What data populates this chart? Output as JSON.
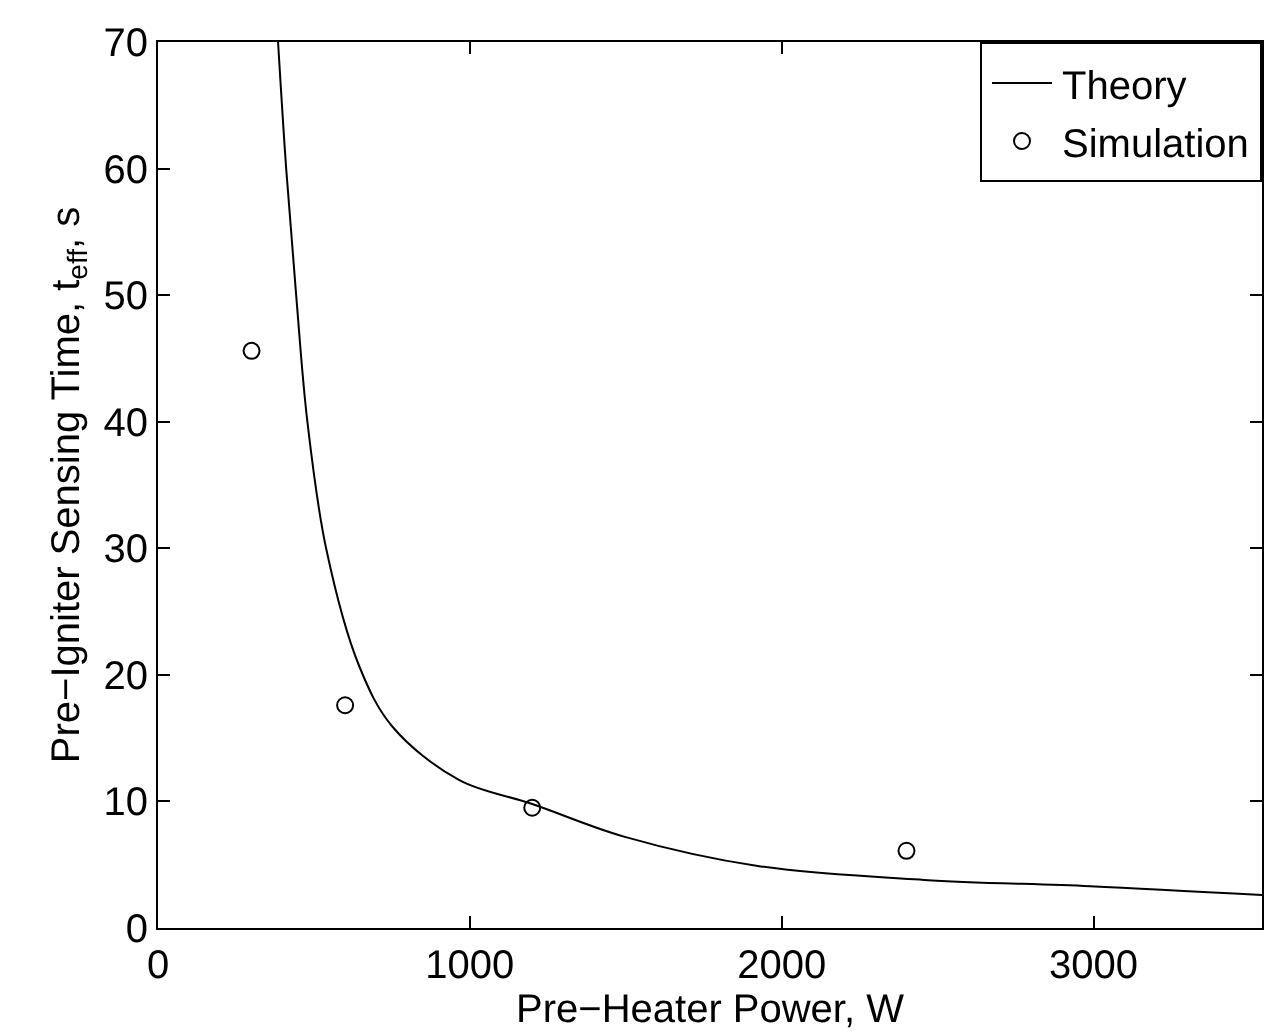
{
  "chart_data": {
    "type": "line",
    "xlabel": "Pre−Heater Power, W",
    "ylabel": "Pre−Igniter Sensing Time, t$_{eff}$, s",
    "xlim": [
      0,
      3540
    ],
    "ylim": [
      0,
      70
    ],
    "xticks": [
      0,
      1000,
      2000,
      3000
    ],
    "yticks": [
      0,
      10,
      20,
      30,
      40,
      50,
      60,
      70
    ],
    "grid": false,
    "legend": "top right",
    "series": [
      {
        "name": "Theory",
        "color": "#000000",
        "marker": "none",
        "line_style": "solid",
        "x": [
          385,
          411,
          443,
          479,
          539,
          645,
          752,
          965,
          1200,
          1497,
          1923,
          2456,
          2988,
          3540
        ],
        "values": [
          70,
          60,
          50,
          40,
          30,
          20.7,
          15.9,
          11.7,
          9.8,
          7.2,
          4.9,
          3.8,
          3.3,
          2.6
        ]
      },
      {
        "name": "Simulation",
        "type": "scatter",
        "color": "#000000",
        "marker": "circle",
        "x": [
          300,
          600,
          1200,
          2400
        ],
        "values": [
          45.6,
          17.6,
          9.5,
          6.1
        ]
      }
    ]
  }
}
